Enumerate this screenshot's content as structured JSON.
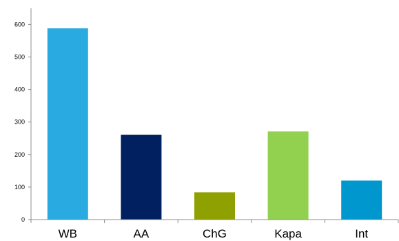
{
  "chart_data": {
    "type": "bar",
    "title": "",
    "xlabel": "",
    "ylabel": "",
    "categories": [
      "WB",
      "AA",
      "ChG",
      "Kapa",
      "Int"
    ],
    "values": [
      588,
      261,
      84,
      271,
      120
    ],
    "colors": [
      "#29aae1",
      "#002060",
      "#8fa100",
      "#92d050",
      "#0097cf"
    ],
    "ylim": [
      0,
      650
    ],
    "yticks": [
      0,
      100,
      200,
      300,
      400,
      500,
      600
    ],
    "grid": false,
    "legend": "none"
  }
}
